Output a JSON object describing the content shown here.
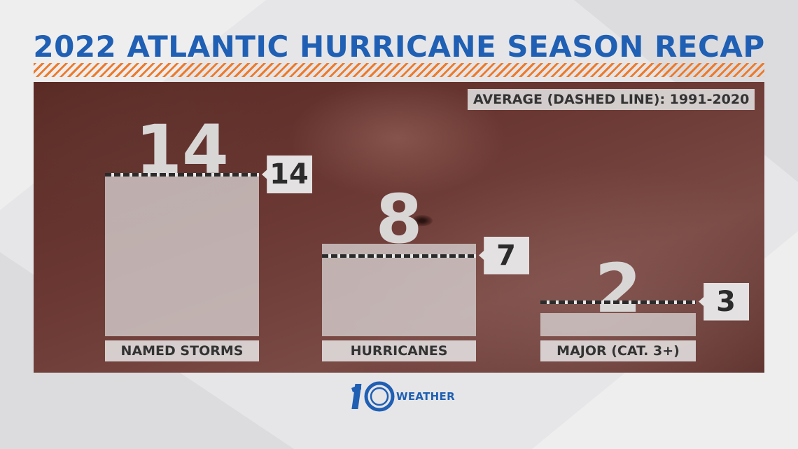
{
  "title": "2022 ATLANTIC HURRICANE SEASON RECAP",
  "average_note": "AVERAGE (DASHED LINE): 1991-2020",
  "colors": {
    "title": "#1f5fb4",
    "accent": "#ee7a2a",
    "bar": "#d7d2d2",
    "panel": "#6b3833"
  },
  "chart_data": {
    "type": "bar",
    "categories": [
      "NAMED STORMS",
      "HURRICANES",
      "MAJOR (CAT. 3+)"
    ],
    "series": [
      {
        "values": [
          14,
          8,
          2
        ]
      },
      {
        "values": [
          14,
          7,
          3
        ]
      }
    ],
    "value_labels": [
      "14",
      "8",
      "2"
    ],
    "average_labels": [
      "14",
      "7",
      "3"
    ],
    "average_style": "dashed",
    "ylim": [
      0,
      14
    ],
    "grid": false,
    "legend": "none"
  },
  "logo": {
    "number": "10",
    "word": "WEATHER"
  }
}
